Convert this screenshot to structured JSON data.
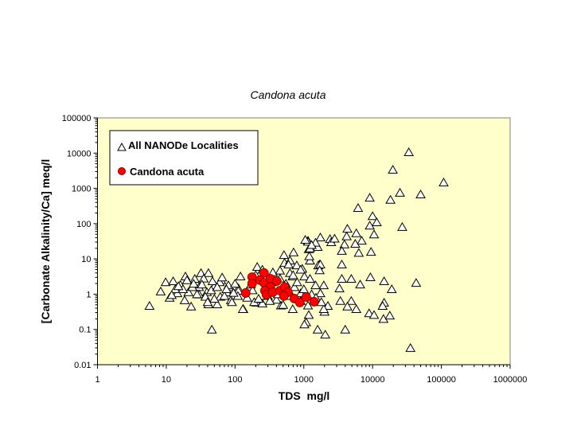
{
  "chart_data": {
    "type": "scatter",
    "title": "Candona acuta",
    "xlabel": "TDS  mg/l",
    "ylabel": "[Carbonate Alkalinity/Ca] meq/l",
    "xscale": "log",
    "yscale": "log",
    "xlim": [
      1,
      1000000
    ],
    "ylim": [
      0.01,
      100000
    ],
    "xticks": [
      "1",
      "10",
      "100",
      "1000",
      "10000",
      "100000",
      "1000000"
    ],
    "yticks": [
      "0.01",
      "0.1",
      "1",
      "10",
      "100",
      "1000",
      "10000",
      "100000"
    ],
    "grid": false,
    "legend_position": "top-left",
    "plot_background": "#FFFFCC",
    "series": [
      {
        "name": "All NANODe Localities",
        "marker": "triangle-open",
        "color": "#000000",
        "points": [
          [
            33600,
            10700
          ],
          [
            19700,
            3400
          ],
          [
            108000,
            1480
          ],
          [
            25000,
            760
          ],
          [
            50000,
            680
          ],
          [
            9100,
            550
          ],
          [
            18200,
            480
          ],
          [
            6150,
            280
          ],
          [
            10000,
            165
          ],
          [
            11500,
            110
          ],
          [
            9100,
            89
          ],
          [
            27000,
            81
          ],
          [
            10500,
            50
          ],
          [
            4300,
            72
          ],
          [
            5800,
            54
          ],
          [
            4200,
            44
          ],
          [
            6950,
            33
          ],
          [
            5600,
            27
          ],
          [
            3900,
            26
          ],
          [
            2400,
            37
          ],
          [
            1740,
            41
          ],
          [
            1150,
            33
          ],
          [
            1590,
            22
          ],
          [
            1180,
            19
          ],
          [
            3570,
            17
          ],
          [
            6300,
            15
          ],
          [
            9500,
            16
          ],
          [
            3570,
            7
          ],
          [
            1700,
            7
          ],
          [
            1230,
            9
          ],
          [
            9300,
            3.05
          ],
          [
            14700,
            2.35
          ],
          [
            43000,
            2.1
          ],
          [
            19000,
            1.4
          ],
          [
            4900,
            2.75
          ],
          [
            3570,
            2.75
          ],
          [
            6600,
            1.9
          ],
          [
            3300,
            1.47
          ],
          [
            3400,
            0.65
          ],
          [
            4900,
            0.65
          ],
          [
            4300,
            0.45
          ],
          [
            5800,
            0.38
          ],
          [
            2240,
            0.47
          ],
          [
            2000,
            0.32
          ],
          [
            14700,
            0.58
          ],
          [
            14000,
            0.47
          ],
          [
            8900,
            0.29
          ],
          [
            10500,
            0.26
          ],
          [
            14400,
            0.2
          ],
          [
            17800,
            0.25
          ],
          [
            1180,
            0.26
          ],
          [
            1080,
            0.16
          ],
          [
            1590,
            0.1
          ],
          [
            2050,
            0.072
          ],
          [
            4000,
            0.1
          ],
          [
            35500,
            0.03
          ],
          [
            5.7,
            0.47
          ],
          [
            8.3,
            1.2
          ],
          [
            9.8,
            2.2
          ],
          [
            12.6,
            2.35
          ],
          [
            11.2,
            0.8
          ],
          [
            19,
            3.2
          ],
          [
            32,
            4.0
          ],
          [
            41,
            4.0
          ],
          [
            23,
            0.45
          ],
          [
            46,
            0.1
          ],
          [
            120,
            3.2
          ],
          [
            132,
            0.38
          ],
          [
            14.5,
            1.07
          ],
          [
            18.5,
            0.68
          ],
          [
            21,
            1.15
          ],
          [
            30,
            1.6
          ],
          [
            30,
            0.99
          ],
          [
            39,
            1.15
          ],
          [
            41,
            0.52
          ],
          [
            51,
            1.8
          ],
          [
            55,
            0.52
          ],
          [
            63,
            2.5
          ],
          [
            76,
            1.15
          ],
          [
            87,
            0.68
          ],
          [
            82,
            1.6
          ],
          [
            112,
            1.48
          ],
          [
            24,
            1.6
          ],
          [
            16,
            1.85
          ],
          [
            26,
            2.75
          ],
          [
            47,
            2.35
          ],
          [
            61,
            0.85
          ],
          [
            37,
            0.85
          ],
          [
            13.5,
            1.4
          ],
          [
            17.5,
            1.4
          ],
          [
            112,
            1.26
          ],
          [
            130,
            0.38
          ],
          [
            210,
            6.0
          ],
          [
            205,
            0.58
          ],
          [
            355,
            4.2
          ],
          [
            515,
            13
          ],
          [
            710,
            15.5
          ],
          [
            525,
            7.8
          ],
          [
            630,
            9.1
          ],
          [
            790,
            6.6
          ],
          [
            950,
            5.3
          ],
          [
            1230,
            9.1
          ],
          [
            1620,
            6.6
          ],
          [
            1020,
            3.2
          ],
          [
            1230,
            2.75
          ],
          [
            1480,
            1.8
          ],
          [
            1740,
            1.07
          ],
          [
            690,
            3.2
          ],
          [
            730,
            1.6
          ],
          [
            900,
            1.07
          ],
          [
            1150,
            0.48
          ],
          [
            690,
            0.38
          ],
          [
            465,
            0.48
          ],
          [
            450,
            4.7
          ],
          [
            630,
            4.0
          ],
          [
            1480,
            29
          ],
          [
            1150,
            31
          ],
          [
            1230,
            20
          ],
          [
            1740,
            7
          ],
          [
            1950,
            1.8
          ],
          [
            1950,
            0.38
          ],
          [
            1020,
            0.14
          ],
          [
            150,
            0.8
          ],
          [
            170,
            1.9
          ],
          [
            190,
            0.6
          ],
          [
            200,
            3.5
          ],
          [
            250,
            0.55
          ],
          [
            300,
            0.9
          ],
          [
            350,
            2.2
          ],
          [
            400,
            0.7
          ],
          [
            450,
            2.8
          ],
          [
            500,
            0.5
          ],
          [
            600,
            1.3
          ],
          [
            250,
            5.0
          ],
          [
            180,
            1.3
          ],
          [
            220,
            0.75
          ],
          [
            280,
            2.9
          ],
          [
            320,
            0.65
          ],
          [
            420,
            1.0
          ],
          [
            550,
            2.0
          ],
          [
            650,
            0.9
          ],
          [
            800,
            2.2
          ],
          [
            900,
            0.65
          ],
          [
            1000,
            1.4
          ],
          [
            700,
            3.5
          ],
          [
            1300,
            1.0
          ],
          [
            1500,
            0.8
          ],
          [
            1700,
            4.8
          ],
          [
            1200,
            12
          ],
          [
            900,
            5
          ],
          [
            600,
            7
          ],
          [
            1800,
            0.6
          ],
          [
            25,
            2.0
          ],
          [
            35,
            2.8
          ],
          [
            45,
            1.3
          ],
          [
            60,
            2.2
          ],
          [
            70,
            0.9
          ],
          [
            80,
            1.8
          ],
          [
            90,
            0.6
          ],
          [
            100,
            2.0
          ],
          [
            110,
            0.9
          ],
          [
            65,
            3.0
          ],
          [
            28,
            1.0
          ],
          [
            50,
            0.75
          ],
          [
            15,
            1.7
          ],
          [
            20,
            2.5
          ],
          [
            12,
            0.95
          ],
          [
            40,
            0.6
          ],
          [
            75,
            1.4
          ],
          [
            95,
            1.1
          ],
          [
            55,
            1.6
          ],
          [
            33,
            1.9
          ],
          [
            1050,
            35
          ],
          [
            1300,
            25
          ],
          [
            2500,
            30
          ],
          [
            2800,
            38
          ]
        ]
      },
      {
        "name": "Candona acuta",
        "marker": "circle-filled",
        "color": "#FF0000",
        "points": [
          [
            143,
            1.08
          ],
          [
            177,
            3.05
          ],
          [
            177,
            2.0
          ],
          [
            264,
            4.0
          ],
          [
            231,
            2.5
          ],
          [
            264,
            2.1
          ],
          [
            327,
            2.75
          ],
          [
            405,
            2.35
          ],
          [
            327,
            1.6
          ],
          [
            272,
            1.26
          ],
          [
            286,
            0.97
          ],
          [
            354,
            1.14
          ],
          [
            450,
            1.26
          ],
          [
            528,
            1.6
          ],
          [
            587,
            1.14
          ],
          [
            514,
            0.88
          ],
          [
            727,
            0.75
          ],
          [
            875,
            0.58
          ],
          [
            1083,
            0.83
          ],
          [
            1413,
            0.61
          ]
        ]
      }
    ]
  }
}
